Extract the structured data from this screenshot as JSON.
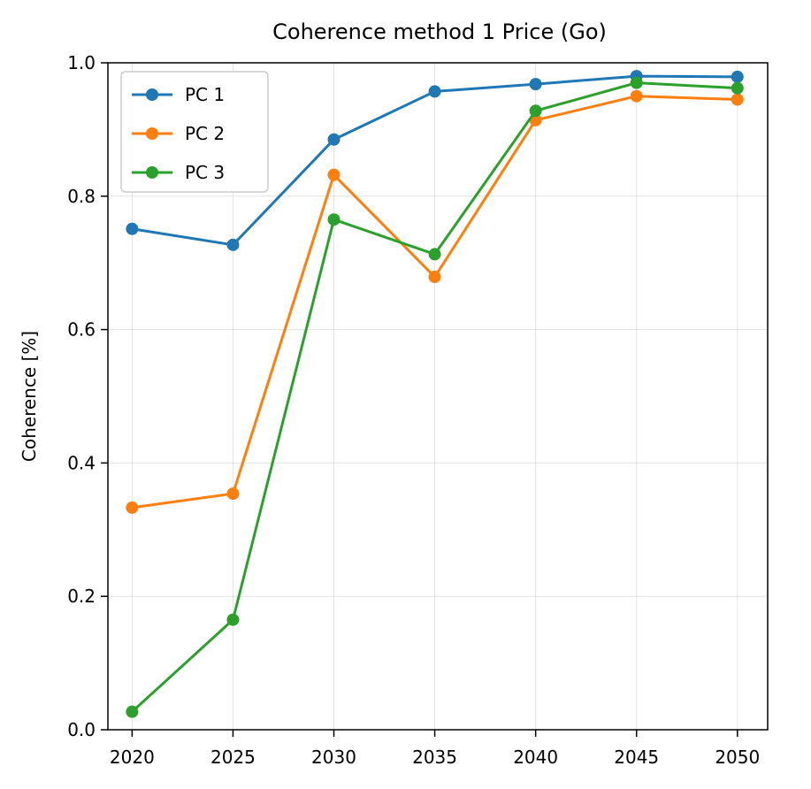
{
  "chart_data": {
    "type": "line",
    "title": "Coherence method 1 Price (Go)",
    "xlabel": "",
    "ylabel": "Coherence [%]",
    "x": [
      2020,
      2025,
      2030,
      2035,
      2040,
      2045,
      2050
    ],
    "xticks": [
      "2020",
      "2025",
      "2030",
      "2035",
      "2040",
      "2045",
      "2050"
    ],
    "xlim": [
      2018.8,
      2051.5
    ],
    "ylim": [
      0.0,
      1.0
    ],
    "yticks": [
      "0.0",
      "0.2",
      "0.4",
      "0.6",
      "0.8",
      "1.0"
    ],
    "grid": true,
    "legend_position": "top-left",
    "series": [
      {
        "name": "PC 1",
        "color": "#1f77b4",
        "values": [
          0.751,
          0.727,
          0.885,
          0.957,
          0.968,
          0.98,
          0.979
        ]
      },
      {
        "name": "PC 2",
        "color": "#ff7f0e",
        "values": [
          0.333,
          0.354,
          0.832,
          0.679,
          0.914,
          0.95,
          0.945
        ]
      },
      {
        "name": "PC 3",
        "color": "#2ca02c",
        "values": [
          0.027,
          0.165,
          0.765,
          0.713,
          0.928,
          0.97,
          0.962
        ]
      }
    ]
  }
}
